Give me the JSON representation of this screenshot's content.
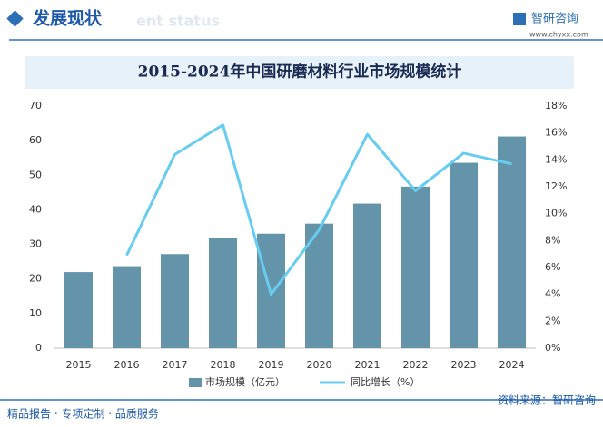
{
  "header": {
    "title": "发展现状",
    "subtitle": "ent status",
    "logo": "智研咨询",
    "url": "www.chyxx.com"
  },
  "chart_data": {
    "type": "bar_line",
    "title": "2015-2024年中国研磨材料行业市场规模统计",
    "categories": [
      "2015",
      "2016",
      "2017",
      "2018",
      "2019",
      "2020",
      "2021",
      "2022",
      "2023",
      "2024"
    ],
    "series": [
      {
        "name": "市场规模（亿元）",
        "color": "#6394aa",
        "type": "bar",
        "values": [
          22,
          23.7,
          27.2,
          31.8,
          33.1,
          36,
          41.8,
          46.7,
          53.6,
          61.2
        ]
      },
      {
        "name": "同比增长（%）",
        "color": "#66cdf0",
        "type": "line",
        "axis": "y2",
        "values": [
          null,
          6.9,
          14.4,
          16.6,
          4.0,
          8.8,
          15.9,
          11.7,
          14.5,
          13.7
        ]
      }
    ],
    "ylim": [
      0,
      70
    ],
    "yticks": [
      0,
      10,
      20,
      30,
      40,
      50,
      60,
      70
    ],
    "y2lim": [
      0,
      18
    ],
    "y2ticks": [
      {
        "value": 0,
        "label": "0%"
      },
      {
        "value": 2,
        "label": "2%"
      },
      {
        "value": 4,
        "label": "4%"
      },
      {
        "value": 6,
        "label": "6%"
      },
      {
        "value": 8,
        "label": "8%"
      },
      {
        "value": 10,
        "label": "10%"
      },
      {
        "value": 12,
        "label": "12%"
      },
      {
        "value": 14,
        "label": "14%"
      },
      {
        "value": 16,
        "label": "16%"
      },
      {
        "value": 18,
        "label": "18%"
      }
    ],
    "grid": false,
    "legend": "bottom"
  },
  "footer": {
    "left": "精品报告 · 专项定制 · 品质服务",
    "source": "资料来源：智研咨询"
  }
}
